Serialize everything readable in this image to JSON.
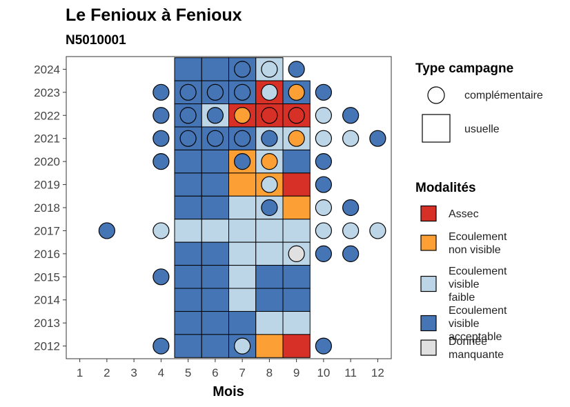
{
  "chart_data": {
    "type": "heatmap",
    "title": "Le Fenioux à Fenioux",
    "subtitle": "N5010001",
    "xlabel": "Mois",
    "x_ticks": [
      1,
      2,
      3,
      4,
      5,
      6,
      7,
      8,
      9,
      10,
      11,
      12
    ],
    "y_ticks": [
      2012,
      2013,
      2014,
      2015,
      2016,
      2017,
      2018,
      2019,
      2020,
      2021,
      2022,
      2023,
      2024
    ],
    "xlim": [
      0.5,
      12.5
    ],
    "ylim": [
      2011.45,
      2024.55
    ],
    "grid": false,
    "legend_position": "right",
    "colors": {
      "Assec": "#d73027",
      "Ecoulement non visible": "#fc9f34",
      "Ecoulement visible faible": "#bcd5e7",
      "Ecoulement visible acceptable": "#4575b4",
      "Donnée manquante": "#e0e0e0"
    },
    "legend_shape": {
      "title": "Type campagne",
      "items": [
        {
          "key": "complementaire",
          "label": "complémentaire",
          "shape": "circle"
        },
        {
          "key": "usuelle",
          "label": "usuelle",
          "shape": "square"
        }
      ]
    },
    "legend_modalites": {
      "title": "Modalités",
      "items": [
        {
          "key": "Assec",
          "label_lines": [
            "Assec"
          ]
        },
        {
          "key": "Ecoulement non visible",
          "label_lines": [
            "Ecoulement",
            "non visible"
          ]
        },
        {
          "key": "Ecoulement visible faible",
          "label_lines": [
            "Ecoulement",
            "visible",
            "faible"
          ]
        },
        {
          "key": "Ecoulement visible acceptable",
          "label_lines": [
            "Ecoulement",
            "visible",
            "acceptable"
          ]
        },
        {
          "key": "Donnée manquante",
          "label_lines": [
            "Donnée",
            "manquante"
          ]
        }
      ]
    },
    "usuelle": [
      {
        "year": 2024,
        "month": 5,
        "modalite": "Ecoulement visible acceptable"
      },
      {
        "year": 2024,
        "month": 6,
        "modalite": "Ecoulement visible acceptable"
      },
      {
        "year": 2024,
        "month": 7,
        "modalite": "Ecoulement visible acceptable"
      },
      {
        "year": 2024,
        "month": 8,
        "modalite": "Ecoulement visible faible"
      },
      {
        "year": 2023,
        "month": 5,
        "modalite": "Ecoulement visible acceptable"
      },
      {
        "year": 2023,
        "month": 6,
        "modalite": "Ecoulement visible acceptable"
      },
      {
        "year": 2023,
        "month": 7,
        "modalite": "Ecoulement visible acceptable"
      },
      {
        "year": 2023,
        "month": 8,
        "modalite": "Assec"
      },
      {
        "year": 2023,
        "month": 9,
        "modalite": "Ecoulement visible acceptable"
      },
      {
        "year": 2022,
        "month": 5,
        "modalite": "Ecoulement visible acceptable"
      },
      {
        "year": 2022,
        "month": 6,
        "modalite": "Ecoulement visible faible"
      },
      {
        "year": 2022,
        "month": 7,
        "modalite": "Assec"
      },
      {
        "year": 2022,
        "month": 8,
        "modalite": "Assec"
      },
      {
        "year": 2022,
        "month": 9,
        "modalite": "Assec"
      },
      {
        "year": 2021,
        "month": 5,
        "modalite": "Ecoulement visible acceptable"
      },
      {
        "year": 2021,
        "month": 6,
        "modalite": "Ecoulement visible acceptable"
      },
      {
        "year": 2021,
        "month": 7,
        "modalite": "Ecoulement visible acceptable"
      },
      {
        "year": 2021,
        "month": 8,
        "modalite": "Ecoulement visible faible"
      },
      {
        "year": 2021,
        "month": 9,
        "modalite": "Ecoulement visible faible"
      },
      {
        "year": 2020,
        "month": 5,
        "modalite": "Ecoulement visible acceptable"
      },
      {
        "year": 2020,
        "month": 6,
        "modalite": "Ecoulement visible acceptable"
      },
      {
        "year": 2020,
        "month": 7,
        "modalite": "Ecoulement non visible"
      },
      {
        "year": 2020,
        "month": 8,
        "modalite": "Ecoulement visible faible"
      },
      {
        "year": 2020,
        "month": 9,
        "modalite": "Ecoulement visible acceptable"
      },
      {
        "year": 2019,
        "month": 5,
        "modalite": "Ecoulement visible acceptable"
      },
      {
        "year": 2019,
        "month": 6,
        "modalite": "Ecoulement visible acceptable"
      },
      {
        "year": 2019,
        "month": 7,
        "modalite": "Ecoulement non visible"
      },
      {
        "year": 2019,
        "month": 8,
        "modalite": "Ecoulement non visible"
      },
      {
        "year": 2019,
        "month": 9,
        "modalite": "Assec"
      },
      {
        "year": 2018,
        "month": 5,
        "modalite": "Ecoulement visible acceptable"
      },
      {
        "year": 2018,
        "month": 6,
        "modalite": "Ecoulement visible acceptable"
      },
      {
        "year": 2018,
        "month": 7,
        "modalite": "Ecoulement visible faible"
      },
      {
        "year": 2018,
        "month": 8,
        "modalite": "Ecoulement visible faible"
      },
      {
        "year": 2018,
        "month": 9,
        "modalite": "Ecoulement non visible"
      },
      {
        "year": 2017,
        "month": 5,
        "modalite": "Ecoulement visible faible"
      },
      {
        "year": 2017,
        "month": 6,
        "modalite": "Ecoulement visible faible"
      },
      {
        "year": 2017,
        "month": 7,
        "modalite": "Ecoulement visible faible"
      },
      {
        "year": 2017,
        "month": 8,
        "modalite": "Ecoulement visible faible"
      },
      {
        "year": 2017,
        "month": 9,
        "modalite": "Ecoulement visible faible"
      },
      {
        "year": 2016,
        "month": 5,
        "modalite": "Ecoulement visible acceptable"
      },
      {
        "year": 2016,
        "month": 6,
        "modalite": "Ecoulement visible acceptable"
      },
      {
        "year": 2016,
        "month": 7,
        "modalite": "Ecoulement visible faible"
      },
      {
        "year": 2016,
        "month": 8,
        "modalite": "Ecoulement visible faible"
      },
      {
        "year": 2016,
        "month": 9,
        "modalite": "Ecoulement visible faible"
      },
      {
        "year": 2015,
        "month": 5,
        "modalite": "Ecoulement visible acceptable"
      },
      {
        "year": 2015,
        "month": 6,
        "modalite": "Ecoulement visible acceptable"
      },
      {
        "year": 2015,
        "month": 7,
        "modalite": "Ecoulement visible faible"
      },
      {
        "year": 2015,
        "month": 8,
        "modalite": "Ecoulement visible acceptable"
      },
      {
        "year": 2015,
        "month": 9,
        "modalite": "Ecoulement visible acceptable"
      },
      {
        "year": 2014,
        "month": 5,
        "modalite": "Ecoulement visible acceptable"
      },
      {
        "year": 2014,
        "month": 6,
        "modalite": "Ecoulement visible acceptable"
      },
      {
        "year": 2014,
        "month": 7,
        "modalite": "Ecoulement visible faible"
      },
      {
        "year": 2014,
        "month": 8,
        "modalite": "Ecoulement visible acceptable"
      },
      {
        "year": 2014,
        "month": 9,
        "modalite": "Ecoulement visible acceptable"
      },
      {
        "year": 2013,
        "month": 5,
        "modalite": "Ecoulement visible acceptable"
      },
      {
        "year": 2013,
        "month": 6,
        "modalite": "Ecoulement visible acceptable"
      },
      {
        "year": 2013,
        "month": 7,
        "modalite": "Ecoulement visible acceptable"
      },
      {
        "year": 2013,
        "month": 8,
        "modalite": "Ecoulement visible faible"
      },
      {
        "year": 2013,
        "month": 9,
        "modalite": "Ecoulement visible faible"
      },
      {
        "year": 2012,
        "month": 5,
        "modalite": "Ecoulement visible acceptable"
      },
      {
        "year": 2012,
        "month": 6,
        "modalite": "Ecoulement visible acceptable"
      },
      {
        "year": 2012,
        "month": 7,
        "modalite": "Ecoulement visible acceptable"
      },
      {
        "year": 2012,
        "month": 8,
        "modalite": "Ecoulement non visible"
      },
      {
        "year": 2012,
        "month": 9,
        "modalite": "Assec"
      }
    ],
    "complementaire": [
      {
        "year": 2024,
        "month": 7,
        "modalite": "Ecoulement visible acceptable"
      },
      {
        "year": 2024,
        "month": 8,
        "modalite": "Ecoulement visible faible"
      },
      {
        "year": 2024,
        "month": 9,
        "modalite": "Ecoulement visible acceptable"
      },
      {
        "year": 2023,
        "month": 4,
        "modalite": "Ecoulement visible acceptable"
      },
      {
        "year": 2023,
        "month": 5,
        "modalite": "Ecoulement visible acceptable"
      },
      {
        "year": 2023,
        "month": 6,
        "modalite": "Ecoulement visible acceptable"
      },
      {
        "year": 2023,
        "month": 7,
        "modalite": "Ecoulement visible acceptable"
      },
      {
        "year": 2023,
        "month": 8,
        "modalite": "Ecoulement visible faible"
      },
      {
        "year": 2023,
        "month": 9,
        "modalite": "Ecoulement non visible"
      },
      {
        "year": 2023,
        "month": 10,
        "modalite": "Ecoulement visible acceptable"
      },
      {
        "year": 2022,
        "month": 4,
        "modalite": "Ecoulement visible acceptable"
      },
      {
        "year": 2022,
        "month": 5,
        "modalite": "Ecoulement visible acceptable"
      },
      {
        "year": 2022,
        "month": 6,
        "modalite": "Ecoulement visible acceptable"
      },
      {
        "year": 2022,
        "month": 7,
        "modalite": "Ecoulement non visible"
      },
      {
        "year": 2022,
        "month": 8,
        "modalite": "Assec"
      },
      {
        "year": 2022,
        "month": 9,
        "modalite": "Assec"
      },
      {
        "year": 2022,
        "month": 10,
        "modalite": "Ecoulement visible faible"
      },
      {
        "year": 2022,
        "month": 11,
        "modalite": "Ecoulement visible acceptable"
      },
      {
        "year": 2021,
        "month": 4,
        "modalite": "Ecoulement visible acceptable"
      },
      {
        "year": 2021,
        "month": 5,
        "modalite": "Ecoulement visible acceptable"
      },
      {
        "year": 2021,
        "month": 6,
        "modalite": "Ecoulement visible acceptable"
      },
      {
        "year": 2021,
        "month": 7,
        "modalite": "Ecoulement visible acceptable"
      },
      {
        "year": 2021,
        "month": 8,
        "modalite": "Ecoulement visible acceptable"
      },
      {
        "year": 2021,
        "month": 9,
        "modalite": "Ecoulement non visible"
      },
      {
        "year": 2021,
        "month": 10,
        "modalite": "Ecoulement visible faible"
      },
      {
        "year": 2021,
        "month": 11,
        "modalite": "Ecoulement visible faible"
      },
      {
        "year": 2021,
        "month": 12,
        "modalite": "Ecoulement visible acceptable"
      },
      {
        "year": 2020,
        "month": 4,
        "modalite": "Ecoulement visible acceptable"
      },
      {
        "year": 2020,
        "month": 7,
        "modalite": "Ecoulement visible acceptable"
      },
      {
        "year": 2020,
        "month": 8,
        "modalite": "Ecoulement non visible"
      },
      {
        "year": 2020,
        "month": 10,
        "modalite": "Ecoulement visible acceptable"
      },
      {
        "year": 2019,
        "month": 8,
        "modalite": "Ecoulement visible faible"
      },
      {
        "year": 2019,
        "month": 10,
        "modalite": "Ecoulement visible acceptable"
      },
      {
        "year": 2018,
        "month": 8,
        "modalite": "Ecoulement visible acceptable"
      },
      {
        "year": 2018,
        "month": 10,
        "modalite": "Ecoulement visible faible"
      },
      {
        "year": 2018,
        "month": 11,
        "modalite": "Ecoulement visible acceptable"
      },
      {
        "year": 2017,
        "month": 2,
        "modalite": "Ecoulement visible acceptable"
      },
      {
        "year": 2017,
        "month": 4,
        "modalite": "Ecoulement visible faible"
      },
      {
        "year": 2017,
        "month": 10,
        "modalite": "Ecoulement visible faible"
      },
      {
        "year": 2017,
        "month": 11,
        "modalite": "Ecoulement visible faible"
      },
      {
        "year": 2017,
        "month": 12,
        "modalite": "Ecoulement visible faible"
      },
      {
        "year": 2016,
        "month": 9,
        "modalite": "Donnée manquante"
      },
      {
        "year": 2016,
        "month": 10,
        "modalite": "Ecoulement visible acceptable"
      },
      {
        "year": 2016,
        "month": 11,
        "modalite": "Ecoulement visible acceptable"
      },
      {
        "year": 2015,
        "month": 4,
        "modalite": "Ecoulement visible acceptable"
      },
      {
        "year": 2012,
        "month": 4,
        "modalite": "Ecoulement visible acceptable"
      },
      {
        "year": 2012,
        "month": 7,
        "modalite": "Ecoulement visible faible"
      },
      {
        "year": 2012,
        "month": 10,
        "modalite": "Ecoulement visible acceptable"
      }
    ]
  }
}
